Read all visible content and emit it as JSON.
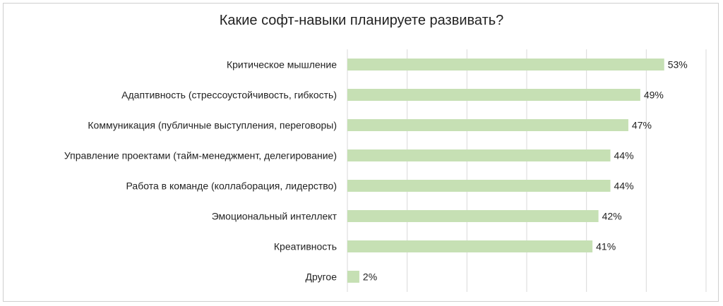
{
  "chart_data": {
    "type": "bar",
    "orientation": "horizontal",
    "title": "Какие софт-навыки планируете развивать?",
    "categories": [
      "Критическое мышление",
      "Адаптивность (стрессоустойчивость, гибкость)",
      "Коммуникация (публичные выступления, переговоры)",
      "Управление проектами (тайм-менеджмент, делегирование)",
      "Работа в команде (коллаборация, лидерство)",
      "Эмоциональный интеллект",
      "Креативность",
      "Другое"
    ],
    "values": [
      53,
      49,
      47,
      44,
      44,
      42,
      41,
      2
    ],
    "value_labels": [
      "53%",
      "49%",
      "47%",
      "44%",
      "44%",
      "42%",
      "41%",
      "2%"
    ],
    "xlim": [
      0,
      60
    ],
    "grid": true,
    "bar_color": "#c6e0b4",
    "grid_color": "#d9d9d9"
  }
}
